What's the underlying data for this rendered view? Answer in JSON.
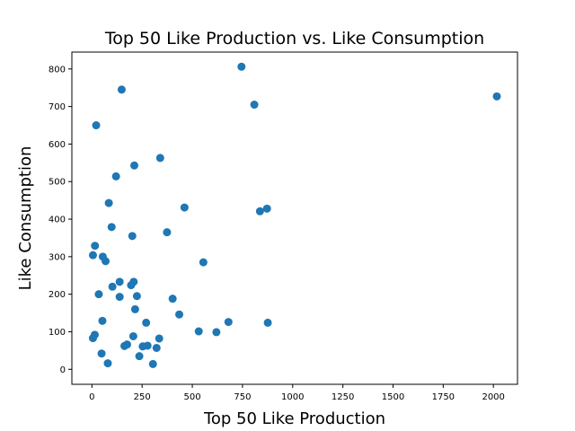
{
  "chart_data": {
    "type": "scatter",
    "title": "Top 50 Like Production vs. Like Consumption",
    "xlabel": "Top 50 Like Production",
    "ylabel": "Like Consumption",
    "xlim": [
      -100,
      2120
    ],
    "ylim": [
      -40,
      845
    ],
    "xticks": [
      0,
      250,
      500,
      750,
      1000,
      1250,
      1500,
      1750,
      2000
    ],
    "yticks": [
      0,
      100,
      200,
      300,
      400,
      500,
      600,
      700,
      800
    ],
    "grid": false,
    "legend": "none",
    "marker_color": "#1f77b4",
    "series": [
      {
        "points": [
          {
            "x": 2017,
            "y": 727
          },
          {
            "x": 745,
            "y": 806
          },
          {
            "x": 809,
            "y": 705
          },
          {
            "x": 148,
            "y": 745
          },
          {
            "x": 21,
            "y": 650
          },
          {
            "x": 340,
            "y": 563
          },
          {
            "x": 211,
            "y": 543
          },
          {
            "x": 120,
            "y": 514
          },
          {
            "x": 84,
            "y": 443
          },
          {
            "x": 461,
            "y": 431
          },
          {
            "x": 872,
            "y": 428
          },
          {
            "x": 837,
            "y": 421
          },
          {
            "x": 98,
            "y": 379
          },
          {
            "x": 374,
            "y": 365
          },
          {
            "x": 201,
            "y": 355
          },
          {
            "x": 15,
            "y": 329
          },
          {
            "x": 5,
            "y": 304
          },
          {
            "x": 54,
            "y": 300
          },
          {
            "x": 68,
            "y": 288
          },
          {
            "x": 555,
            "y": 285
          },
          {
            "x": 138,
            "y": 233
          },
          {
            "x": 208,
            "y": 233
          },
          {
            "x": 195,
            "y": 224
          },
          {
            "x": 102,
            "y": 220
          },
          {
            "x": 34,
            "y": 200
          },
          {
            "x": 138,
            "y": 193
          },
          {
            "x": 224,
            "y": 195
          },
          {
            "x": 402,
            "y": 188
          },
          {
            "x": 215,
            "y": 160
          },
          {
            "x": 435,
            "y": 146
          },
          {
            "x": 52,
            "y": 129
          },
          {
            "x": 680,
            "y": 126
          },
          {
            "x": 876,
            "y": 124
          },
          {
            "x": 270,
            "y": 124
          },
          {
            "x": 532,
            "y": 101
          },
          {
            "x": 620,
            "y": 99
          },
          {
            "x": 14,
            "y": 92
          },
          {
            "x": 5,
            "y": 83
          },
          {
            "x": 206,
            "y": 88
          },
          {
            "x": 335,
            "y": 82
          },
          {
            "x": 162,
            "y": 62
          },
          {
            "x": 175,
            "y": 66
          },
          {
            "x": 253,
            "y": 61
          },
          {
            "x": 277,
            "y": 63
          },
          {
            "x": 322,
            "y": 57
          },
          {
            "x": 48,
            "y": 42
          },
          {
            "x": 236,
            "y": 35
          },
          {
            "x": 79,
            "y": 16
          },
          {
            "x": 304,
            "y": 14
          }
        ]
      }
    ]
  }
}
